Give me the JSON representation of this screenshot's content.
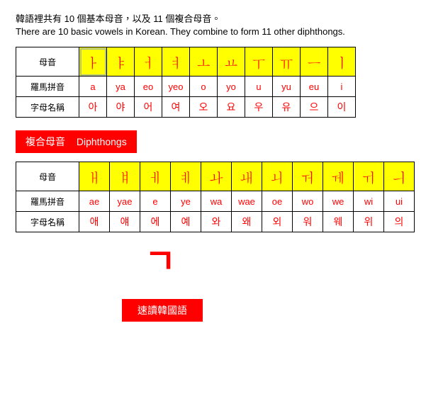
{
  "intro": {
    "cn": "韓語裡共有 10 個基本母音，以及 11 個複合母音。",
    "en": "There are 10 basic vowels in Korean. They combine to form 11 other diphthongs."
  },
  "labels": {
    "vowel": "母音",
    "roman": "羅馬拼音",
    "name": "字母名稱"
  },
  "basic": {
    "glyphs": [
      "ㅏ",
      "ㅑ",
      "ㅓ",
      "ㅕ",
      "ㅗ",
      "ㅛ",
      "ㅜ",
      "ㅠ",
      "ㅡ",
      "ㅣ"
    ],
    "roman": [
      "a",
      "ya",
      "eo",
      "yeo",
      "o",
      "yo",
      "u",
      "yu",
      "eu",
      "i"
    ],
    "names": [
      "아",
      "야",
      "어",
      "여",
      "오",
      "요",
      "우",
      "유",
      "으",
      "이"
    ]
  },
  "section": {
    "cn": "複合母音",
    "en": "Diphthongs"
  },
  "diph": {
    "glyphs": [
      "ㅐ",
      "ㅒ",
      "ㅔ",
      "ㅖ",
      "ㅘ",
      "ㅙ",
      "ㅚ",
      "ㅝ",
      "ㅞ",
      "ㅟ",
      "ㅢ"
    ],
    "roman": [
      "ae",
      "yae",
      "e",
      "ye",
      "wa",
      "wae",
      "oe",
      "wo",
      "we",
      "wi",
      "ui"
    ],
    "names": [
      "애",
      "얘",
      "에",
      "예",
      "와",
      "왜",
      "외",
      "워",
      "웨",
      "위",
      "의"
    ]
  },
  "big_glyph": "ㄱ",
  "bottom": "速讀韓國語"
}
